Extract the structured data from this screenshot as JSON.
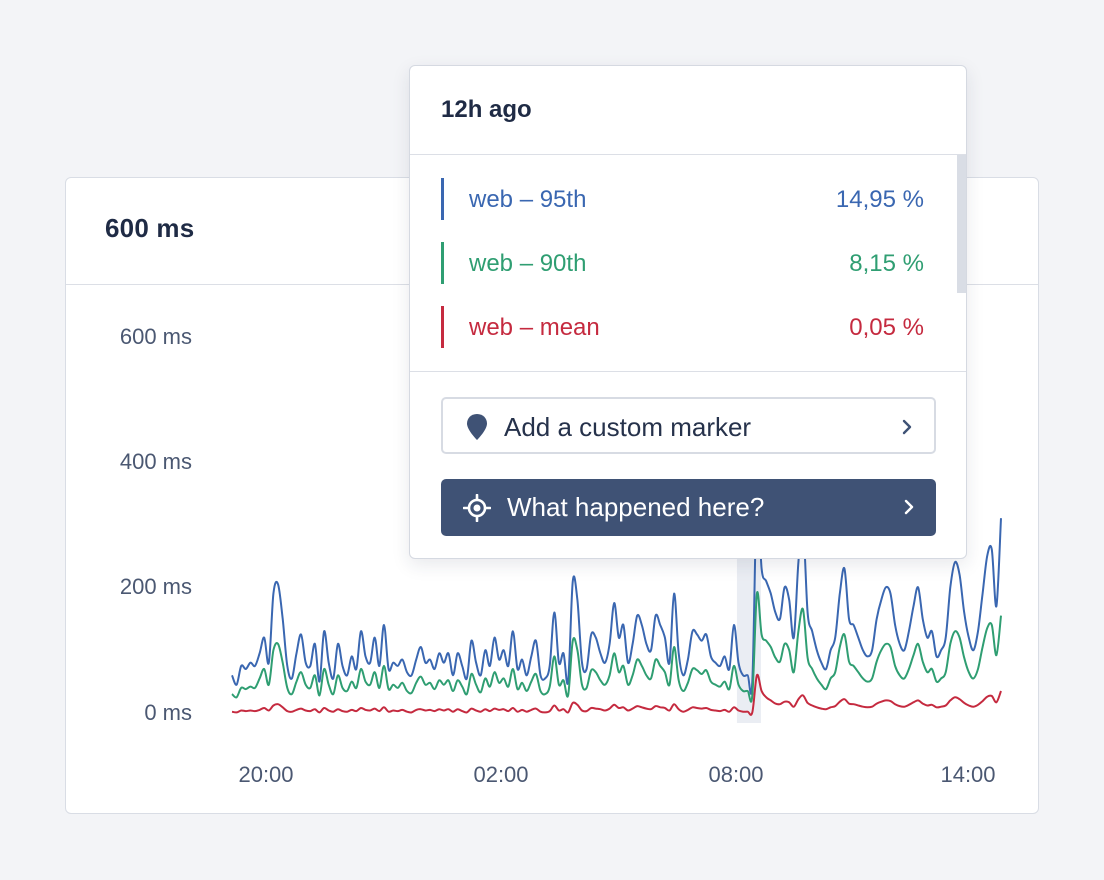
{
  "card": {
    "title": "600 ms"
  },
  "chart_data": {
    "type": "line",
    "y_tick_labels": [
      "600 ms",
      "400 ms",
      "200 ms",
      "0 ms"
    ],
    "y_ticks": [
      600,
      400,
      200,
      0
    ],
    "ylim": [
      0,
      600
    ],
    "x_tick_labels": [
      "20:00",
      "02:00",
      "08:00",
      "14:00"
    ],
    "x_range_hours": [
      0,
      18
    ],
    "highlight_x_hours": 12.1,
    "series": [
      {
        "name": "web – 95th",
        "color": "#3a67b1",
        "values": [
          60,
          45,
          75,
          70,
          80,
          75,
          95,
          120,
          80,
          190,
          205,
          150,
          75,
          55,
          95,
          125,
          80,
          75,
          110,
          50,
          130,
          80,
          55,
          110,
          75,
          60,
          90,
          70,
          130,
          90,
          80,
          120,
          75,
          140,
          70,
          80,
          75,
          85,
          65,
          60,
          85,
          105,
          80,
          85,
          70,
          95,
          80,
          95,
          60,
          95,
          75,
          55,
          115,
          80,
          60,
          100,
          75,
          120,
          85,
          100,
          75,
          130,
          70,
          85,
          60,
          90,
          115,
          60,
          55,
          75,
          160,
          80,
          95,
          50,
          210,
          180,
          80,
          70,
          125,
          120,
          95,
          80,
          110,
          175,
          120,
          140,
          80,
          110,
          155,
          140,
          110,
          100,
          155,
          140,
          120,
          80,
          190,
          95,
          60,
          85,
          130,
          125,
          115,
          125,
          90,
          80,
          75,
          90,
          70,
          140,
          80,
          60,
          60,
          50,
          350,
          230,
          210,
          190,
          160,
          150,
          200,
          180,
          120,
          240,
          300,
          160,
          130,
          100,
          80,
          70,
          100,
          120,
          190,
          230,
          150,
          140,
          120,
          100,
          90,
          100,
          150,
          180,
          200,
          190,
          140,
          110,
          100,
          130,
          170,
          200,
          150,
          120,
          130,
          90,
          100,
          120,
          200,
          240,
          220,
          160,
          120,
          100,
          130,
          190,
          250,
          260,
          170,
          310
        ]
      },
      {
        "name": "web – 90th",
        "color": "#2f9e72",
        "values": [
          30,
          25,
          40,
          38,
          42,
          40,
          55,
          70,
          45,
          100,
          110,
          80,
          40,
          30,
          50,
          65,
          45,
          40,
          60,
          28,
          70,
          45,
          30,
          60,
          40,
          35,
          50,
          40,
          70,
          50,
          45,
          65,
          40,
          75,
          38,
          45,
          40,
          48,
          35,
          32,
          48,
          58,
          45,
          48,
          38,
          52,
          45,
          52,
          35,
          52,
          42,
          30,
          62,
          45,
          33,
          55,
          42,
          65,
          48,
          55,
          42,
          70,
          38,
          48,
          35,
          50,
          62,
          35,
          30,
          42,
          90,
          45,
          52,
          28,
          115,
          100,
          45,
          40,
          68,
          65,
          52,
          45,
          60,
          95,
          65,
          75,
          45,
          60,
          85,
          75,
          60,
          55,
          85,
          75,
          65,
          45,
          105,
          52,
          35,
          48,
          70,
          68,
          62,
          68,
          50,
          45,
          42,
          50,
          38,
          75,
          45,
          35,
          35,
          28,
          190,
          125,
          115,
          105,
          88,
          82,
          110,
          100,
          65,
          130,
          165,
          88,
          70,
          55,
          45,
          38,
          55,
          65,
          105,
          125,
          82,
          75,
          65,
          55,
          50,
          55,
          82,
          100,
          110,
          105,
          75,
          60,
          55,
          70,
          92,
          110,
          82,
          65,
          70,
          50,
          55,
          65,
          110,
          130,
          120,
          88,
          65,
          55,
          70,
          105,
          135,
          140,
          92,
          155
        ]
      },
      {
        "name": "web – mean",
        "color": "#c52a3f",
        "values": [
          2,
          1,
          4,
          3,
          4,
          3,
          5,
          8,
          4,
          12,
          14,
          9,
          3,
          2,
          5,
          7,
          4,
          3,
          6,
          1,
          8,
          4,
          2,
          6,
          3,
          2,
          5,
          3,
          8,
          5,
          4,
          7,
          3,
          9,
          2,
          4,
          3,
          5,
          2,
          1,
          5,
          6,
          4,
          5,
          3,
          6,
          4,
          6,
          2,
          6,
          3,
          1,
          7,
          4,
          2,
          6,
          3,
          7,
          5,
          6,
          3,
          8,
          2,
          5,
          2,
          5,
          7,
          2,
          1,
          3,
          12,
          4,
          6,
          1,
          16,
          13,
          4,
          3,
          8,
          7,
          6,
          4,
          7,
          13,
          8,
          9,
          4,
          7,
          11,
          9,
          7,
          6,
          11,
          9,
          8,
          4,
          14,
          6,
          2,
          5,
          9,
          8,
          7,
          8,
          5,
          4,
          3,
          5,
          2,
          9,
          4,
          2,
          2,
          1,
          60,
          35,
          25,
          20,
          15,
          14,
          18,
          17,
          10,
          22,
          28,
          16,
          12,
          9,
          7,
          6,
          9,
          11,
          18,
          22,
          15,
          14,
          12,
          10,
          9,
          10,
          15,
          18,
          20,
          19,
          14,
          11,
          10,
          13,
          17,
          20,
          15,
          12,
          13,
          9,
          10,
          12,
          20,
          25,
          22,
          16,
          12,
          10,
          13,
          19,
          26,
          27,
          17,
          35
        ]
      }
    ]
  },
  "tooltip": {
    "title": "12h ago",
    "rows": [
      {
        "name": "web – 95th",
        "value": "14,95 %",
        "color": "#3a67b1"
      },
      {
        "name": "web – 90th",
        "value": "8,15 %",
        "color": "#2f9e72"
      },
      {
        "name": "web – mean",
        "value": "0,05 %",
        "color": "#c52a3f"
      }
    ],
    "actions": {
      "add_marker": "Add a custom marker",
      "what_happened": "What happened here?"
    }
  }
}
